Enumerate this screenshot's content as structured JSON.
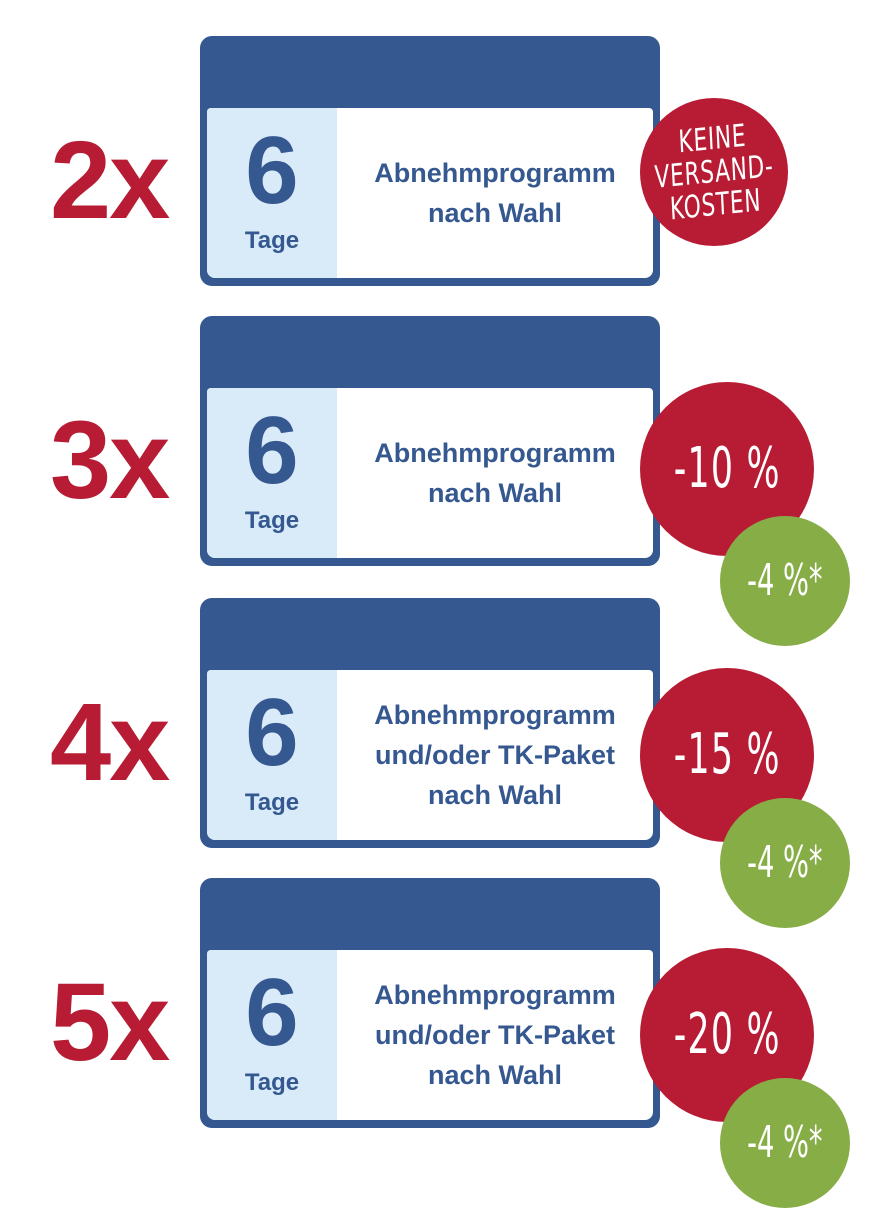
{
  "offers": [
    {
      "multiplier": "2x",
      "days": "6",
      "days_label": "Tage",
      "program": "Abnehmprogramm\nnach Wahl",
      "badge": "KEINE\nVERSAND-\nKOSTEN",
      "extra_badge": null
    },
    {
      "multiplier": "3x",
      "days": "6",
      "days_label": "Tage",
      "program": "Abnehmprogramm\nnach Wahl",
      "badge": "-10 %",
      "extra_badge": "-4 %*"
    },
    {
      "multiplier": "4x",
      "days": "6",
      "days_label": "Tage",
      "program": "Abnehmprogramm\nund/oder TK-Paket\nnach Wahl",
      "badge": "-15 %",
      "extra_badge": "-4 %*"
    },
    {
      "multiplier": "5x",
      "days": "6",
      "days_label": "Tage",
      "program": "Abnehmprogramm\nund/oder TK-Paket\nnach Wahl",
      "badge": "-20 %",
      "extra_badge": "-4 %*"
    }
  ],
  "colors": {
    "accent_red": "#b71c34",
    "calendar_blue": "#34588f",
    "panel_light_blue": "#d9ebf8",
    "green": "#87ad47"
  }
}
